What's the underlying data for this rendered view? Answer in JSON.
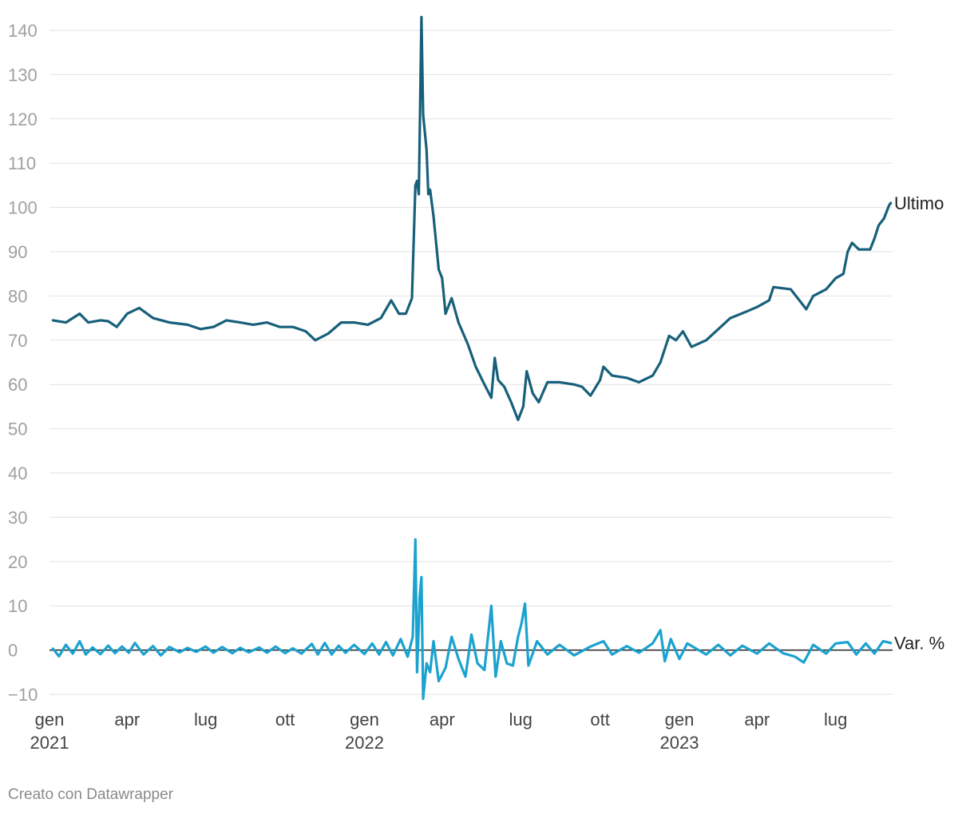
{
  "chart_data": {
    "type": "line",
    "x_axis": {
      "type": "date",
      "min": "2021-01-01",
      "max": "2023-09-05",
      "ticks": [
        {
          "date": "2021-01-01",
          "label": "gen",
          "year": "2021"
        },
        {
          "date": "2021-04-01",
          "label": "apr",
          "year": ""
        },
        {
          "date": "2021-07-01",
          "label": "lug",
          "year": ""
        },
        {
          "date": "2021-10-01",
          "label": "ott",
          "year": ""
        },
        {
          "date": "2022-01-01",
          "label": "gen",
          "year": "2022"
        },
        {
          "date": "2022-04-01",
          "label": "apr",
          "year": ""
        },
        {
          "date": "2022-07-01",
          "label": "lug",
          "year": ""
        },
        {
          "date": "2022-10-01",
          "label": "ott",
          "year": ""
        },
        {
          "date": "2023-01-01",
          "label": "gen",
          "year": "2023"
        },
        {
          "date": "2023-04-01",
          "label": "apr",
          "year": ""
        },
        {
          "date": "2023-07-01",
          "label": "lug",
          "year": ""
        }
      ]
    },
    "y_axis": {
      "min": -10,
      "max": 140,
      "ticks": [
        "140",
        "130",
        "120",
        "110",
        "100",
        "90",
        "80",
        "70",
        "60",
        "50",
        "40",
        "30",
        "20",
        "10",
        "0",
        "−10"
      ],
      "grid": true
    },
    "series": [
      {
        "name": "Ultimo",
        "color": "#17607a",
        "points": [
          [
            "2021-01-05",
            74.5
          ],
          [
            "2021-01-20",
            74.0
          ],
          [
            "2021-02-05",
            76.0
          ],
          [
            "2021-02-15",
            74.0
          ],
          [
            "2021-03-01",
            74.5
          ],
          [
            "2021-03-10",
            74.3
          ],
          [
            "2021-03-20",
            73.0
          ],
          [
            "2021-04-01",
            76.0
          ],
          [
            "2021-04-15",
            77.3
          ],
          [
            "2021-05-01",
            75.0
          ],
          [
            "2021-05-20",
            74.0
          ],
          [
            "2021-06-10",
            73.5
          ],
          [
            "2021-06-25",
            72.5
          ],
          [
            "2021-07-10",
            73.0
          ],
          [
            "2021-07-25",
            74.5
          ],
          [
            "2021-08-10",
            74.0
          ],
          [
            "2021-08-25",
            73.5
          ],
          [
            "2021-09-10",
            74.0
          ],
          [
            "2021-09-25",
            73.0
          ],
          [
            "2021-10-10",
            73.0
          ],
          [
            "2021-10-25",
            72.0
          ],
          [
            "2021-11-05",
            70.0
          ],
          [
            "2021-11-20",
            71.5
          ],
          [
            "2021-12-05",
            74.0
          ],
          [
            "2021-12-20",
            74.0
          ],
          [
            "2022-01-05",
            73.5
          ],
          [
            "2022-01-20",
            75.0
          ],
          [
            "2022-02-01",
            79.0
          ],
          [
            "2022-02-10",
            76.0
          ],
          [
            "2022-02-18",
            76.0
          ],
          [
            "2022-02-25",
            79.5
          ],
          [
            "2022-03-01",
            105.0
          ],
          [
            "2022-03-03",
            106.0
          ],
          [
            "2022-03-05",
            103.0
          ],
          [
            "2022-03-08",
            143.0
          ],
          [
            "2022-03-10",
            121.0
          ],
          [
            "2022-03-14",
            113.0
          ],
          [
            "2022-03-16",
            103.0
          ],
          [
            "2022-03-18",
            104.0
          ],
          [
            "2022-03-22",
            98.0
          ],
          [
            "2022-03-28",
            86.0
          ],
          [
            "2022-04-01",
            84.0
          ],
          [
            "2022-04-05",
            76.0
          ],
          [
            "2022-04-12",
            79.5
          ],
          [
            "2022-04-20",
            74.0
          ],
          [
            "2022-05-01",
            69.0
          ],
          [
            "2022-05-10",
            64.0
          ],
          [
            "2022-05-20",
            60.0
          ],
          [
            "2022-05-28",
            57.0
          ],
          [
            "2022-06-01",
            66.0
          ],
          [
            "2022-06-05",
            61.0
          ],
          [
            "2022-06-12",
            59.5
          ],
          [
            "2022-06-20",
            56.0
          ],
          [
            "2022-06-28",
            52.0
          ],
          [
            "2022-07-04",
            55.0
          ],
          [
            "2022-07-08",
            63.0
          ],
          [
            "2022-07-15",
            58.0
          ],
          [
            "2022-07-22",
            56.0
          ],
          [
            "2022-08-01",
            60.5
          ],
          [
            "2022-08-15",
            60.5
          ],
          [
            "2022-09-01",
            60.0
          ],
          [
            "2022-09-10",
            59.5
          ],
          [
            "2022-09-20",
            57.5
          ],
          [
            "2022-10-01",
            61.0
          ],
          [
            "2022-10-05",
            64.0
          ],
          [
            "2022-10-15",
            62.0
          ],
          [
            "2022-11-01",
            61.5
          ],
          [
            "2022-11-15",
            60.5
          ],
          [
            "2022-12-01",
            62.0
          ],
          [
            "2022-12-10",
            65.0
          ],
          [
            "2022-12-20",
            71.0
          ],
          [
            "2022-12-28",
            70.0
          ],
          [
            "2023-01-05",
            72.0
          ],
          [
            "2023-01-15",
            68.5
          ],
          [
            "2023-02-01",
            70.0
          ],
          [
            "2023-02-15",
            72.5
          ],
          [
            "2023-03-01",
            75.0
          ],
          [
            "2023-03-20",
            76.5
          ],
          [
            "2023-04-01",
            77.5
          ],
          [
            "2023-04-15",
            79.0
          ],
          [
            "2023-04-20",
            82.0
          ],
          [
            "2023-05-10",
            81.5
          ],
          [
            "2023-05-20",
            79.0
          ],
          [
            "2023-05-28",
            77.0
          ],
          [
            "2023-06-05",
            80.0
          ],
          [
            "2023-06-20",
            81.5
          ],
          [
            "2023-07-01",
            84.0
          ],
          [
            "2023-07-10",
            85.0
          ],
          [
            "2023-07-15",
            90.0
          ],
          [
            "2023-07-20",
            92.0
          ],
          [
            "2023-07-28",
            90.5
          ],
          [
            "2023-08-10",
            90.5
          ],
          [
            "2023-08-15",
            93.0
          ],
          [
            "2023-08-20",
            96.0
          ],
          [
            "2023-08-26",
            97.5
          ],
          [
            "2023-09-01",
            100.5
          ],
          [
            "2023-09-03",
            101.0
          ]
        ]
      },
      {
        "name": "Var. %",
        "color": "#1ba2cf",
        "points": [
          [
            "2021-01-05",
            0.3
          ],
          [
            "2021-01-12",
            -1.4
          ],
          [
            "2021-01-20",
            1.2
          ],
          [
            "2021-01-28",
            -0.8
          ],
          [
            "2021-02-05",
            2.0
          ],
          [
            "2021-02-12",
            -1.0
          ],
          [
            "2021-02-20",
            0.6
          ],
          [
            "2021-03-01",
            -0.9
          ],
          [
            "2021-03-10",
            1.0
          ],
          [
            "2021-03-18",
            -0.7
          ],
          [
            "2021-03-26",
            0.8
          ],
          [
            "2021-04-03",
            -0.6
          ],
          [
            "2021-04-10",
            1.6
          ],
          [
            "2021-04-20",
            -1.0
          ],
          [
            "2021-05-01",
            0.9
          ],
          [
            "2021-05-10",
            -1.2
          ],
          [
            "2021-05-20",
            0.7
          ],
          [
            "2021-06-01",
            -0.5
          ],
          [
            "2021-06-10",
            0.5
          ],
          [
            "2021-06-20",
            -0.4
          ],
          [
            "2021-07-01",
            0.8
          ],
          [
            "2021-07-10",
            -0.6
          ],
          [
            "2021-07-20",
            0.7
          ],
          [
            "2021-08-01",
            -0.7
          ],
          [
            "2021-08-10",
            0.5
          ],
          [
            "2021-08-20",
            -0.5
          ],
          [
            "2021-09-01",
            0.6
          ],
          [
            "2021-09-10",
            -0.6
          ],
          [
            "2021-09-20",
            0.8
          ],
          [
            "2021-10-01",
            -0.7
          ],
          [
            "2021-10-10",
            0.4
          ],
          [
            "2021-10-20",
            -0.8
          ],
          [
            "2021-11-01",
            1.4
          ],
          [
            "2021-11-08",
            -1.0
          ],
          [
            "2021-11-16",
            1.6
          ],
          [
            "2021-11-24",
            -1.0
          ],
          [
            "2021-12-02",
            1.0
          ],
          [
            "2021-12-10",
            -0.6
          ],
          [
            "2021-12-20",
            1.2
          ],
          [
            "2022-01-01",
            -0.9
          ],
          [
            "2022-01-10",
            1.5
          ],
          [
            "2022-01-18",
            -1.0
          ],
          [
            "2022-01-26",
            1.8
          ],
          [
            "2022-02-03",
            -1.2
          ],
          [
            "2022-02-12",
            2.5
          ],
          [
            "2022-02-20",
            -1.5
          ],
          [
            "2022-02-26",
            3.0
          ],
          [
            "2022-03-01",
            25.0
          ],
          [
            "2022-03-03",
            -5.0
          ],
          [
            "2022-03-06",
            12.0
          ],
          [
            "2022-03-08",
            16.5
          ],
          [
            "2022-03-10",
            -11.0
          ],
          [
            "2022-03-14",
            -3.0
          ],
          [
            "2022-03-18",
            -5.0
          ],
          [
            "2022-03-22",
            2.0
          ],
          [
            "2022-03-28",
            -7.0
          ],
          [
            "2022-04-05",
            -4.0
          ],
          [
            "2022-04-12",
            3.0
          ],
          [
            "2022-04-20",
            -2.0
          ],
          [
            "2022-04-28",
            -6.0
          ],
          [
            "2022-05-05",
            3.5
          ],
          [
            "2022-05-12",
            -3.0
          ],
          [
            "2022-05-20",
            -4.5
          ],
          [
            "2022-05-28",
            10.0
          ],
          [
            "2022-06-02",
            -6.0
          ],
          [
            "2022-06-08",
            2.0
          ],
          [
            "2022-06-15",
            -3.0
          ],
          [
            "2022-06-22",
            -3.5
          ],
          [
            "2022-06-28",
            3.0
          ],
          [
            "2022-07-02",
            6.0
          ],
          [
            "2022-07-06",
            10.5
          ],
          [
            "2022-07-10",
            -3.5
          ],
          [
            "2022-07-20",
            2.0
          ],
          [
            "2022-08-01",
            -1.0
          ],
          [
            "2022-08-15",
            1.2
          ],
          [
            "2022-09-01",
            -1.2
          ],
          [
            "2022-09-20",
            0.8
          ],
          [
            "2022-10-05",
            2.0
          ],
          [
            "2022-10-15",
            -1.0
          ],
          [
            "2022-11-01",
            0.9
          ],
          [
            "2022-11-15",
            -0.6
          ],
          [
            "2022-12-01",
            1.5
          ],
          [
            "2022-12-10",
            4.5
          ],
          [
            "2022-12-15",
            -2.5
          ],
          [
            "2022-12-22",
            2.5
          ],
          [
            "2023-01-01",
            -2.0
          ],
          [
            "2023-01-10",
            1.5
          ],
          [
            "2023-02-01",
            -1.0
          ],
          [
            "2023-02-15",
            1.2
          ],
          [
            "2023-03-01",
            -1.2
          ],
          [
            "2023-03-15",
            1.0
          ],
          [
            "2023-04-01",
            -0.8
          ],
          [
            "2023-04-15",
            1.5
          ],
          [
            "2023-05-01",
            -0.7
          ],
          [
            "2023-05-15",
            -1.5
          ],
          [
            "2023-05-25",
            -2.8
          ],
          [
            "2023-06-05",
            1.2
          ],
          [
            "2023-06-20",
            -0.8
          ],
          [
            "2023-07-01",
            1.5
          ],
          [
            "2023-07-15",
            1.8
          ],
          [
            "2023-07-25",
            -1.0
          ],
          [
            "2023-08-05",
            1.5
          ],
          [
            "2023-08-15",
            -0.8
          ],
          [
            "2023-08-25",
            2.0
          ],
          [
            "2023-09-03",
            1.6
          ]
        ]
      }
    ],
    "zero_line": true
  },
  "footer": {
    "credit": "Creato con Datawrapper"
  }
}
